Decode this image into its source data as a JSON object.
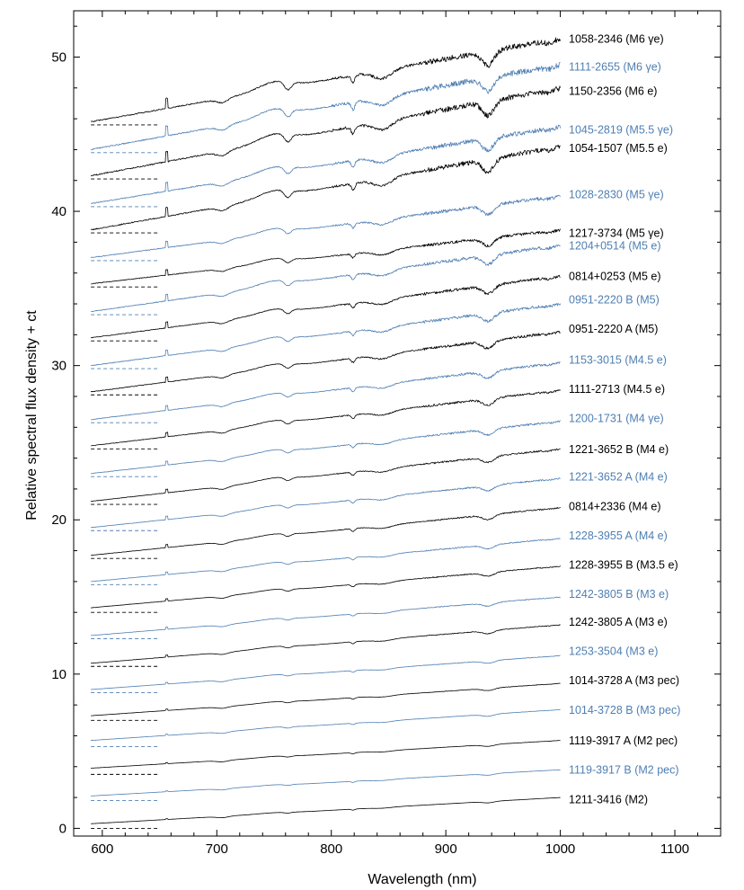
{
  "chart_data": {
    "type": "line",
    "title": "",
    "xlabel": "Wavelength (nm)",
    "ylabel": "Relative spectral flux density + ct",
    "xlim": [
      575,
      1140
    ],
    "ylim": [
      -0.5,
      53
    ],
    "x_ticks": [
      600,
      700,
      800,
      900,
      1000,
      1100
    ],
    "y_ticks": [
      0,
      10,
      20,
      30,
      40,
      50
    ],
    "x_range_spectra": [
      590,
      1000
    ],
    "dashed_reference_range": [
      590,
      650
    ],
    "colors": {
      "black": "#000000",
      "blue": "#4f7fb3"
    },
    "series": [
      {
        "name": "1211-3416 (M2)",
        "color": "black",
        "offset": 0.0,
        "start": 0.3,
        "end": 2.0,
        "label_y": 1.9
      },
      {
        "name": "1119-3917 B (M2  pec)",
        "color": "blue",
        "offset": 1.8,
        "start": 2.1,
        "end": 3.8,
        "label_y": 3.8
      },
      {
        "name": "1119-3917 A (M2  pec)",
        "color": "black",
        "offset": 3.5,
        "start": 3.9,
        "end": 5.7,
        "label_y": 5.7
      },
      {
        "name": "1014-3728 B (M3  pec)",
        "color": "blue",
        "offset": 5.3,
        "start": 5.7,
        "end": 7.7,
        "label_y": 7.7
      },
      {
        "name": "1014-3728 A (M3  pec)",
        "color": "black",
        "offset": 7.0,
        "start": 7.3,
        "end": 9.4,
        "label_y": 9.6
      },
      {
        "name": "1253-3504 (M3 e)",
        "color": "blue",
        "offset": 8.8,
        "start": 9.0,
        "end": 11.2,
        "label_y": 11.5
      },
      {
        "name": "1242-3805 A (M3 e)",
        "color": "black",
        "offset": 10.5,
        "start": 10.7,
        "end": 13.2,
        "label_y": 13.4
      },
      {
        "name": "1242-3805 B (M3 e)",
        "color": "blue",
        "offset": 12.3,
        "start": 12.5,
        "end": 15.0,
        "label_y": 15.2
      },
      {
        "name": "1228-3955 B (M3.5 e)",
        "color": "black",
        "offset": 14.0,
        "start": 14.3,
        "end": 17.0,
        "label_y": 17.1
      },
      {
        "name": "1228-3955 A (M4 e)",
        "color": "blue",
        "offset": 15.8,
        "start": 16.0,
        "end": 18.8,
        "label_y": 19.0
      },
      {
        "name": "0814+2336 (M4 e)",
        "color": "black",
        "offset": 17.5,
        "start": 17.7,
        "end": 20.8,
        "label_y": 20.9
      },
      {
        "name": "1221-3652 A (M4 e)",
        "color": "blue",
        "offset": 19.3,
        "start": 19.5,
        "end": 22.7,
        "label_y": 22.8
      },
      {
        "name": "1221-3652 B (M4 e)",
        "color": "black",
        "offset": 21.0,
        "start": 21.2,
        "end": 24.6,
        "label_y": 24.6
      },
      {
        "name": "1200-1731 (M4 γe)",
        "color": "blue",
        "offset": 22.8,
        "start": 23.0,
        "end": 26.4,
        "label_y": 26.6
      },
      {
        "name": "1111-2713 (M4.5 e)",
        "color": "black",
        "offset": 24.6,
        "start": 24.8,
        "end": 28.4,
        "label_y": 28.5
      },
      {
        "name": "1153-3015 (M4.5 e)",
        "color": "blue",
        "offset": 26.3,
        "start": 26.5,
        "end": 30.2,
        "label_y": 30.4
      },
      {
        "name": "0951-2220 A (M5)",
        "color": "black",
        "offset": 28.1,
        "start": 28.3,
        "end": 32.2,
        "label_y": 32.4
      },
      {
        "name": "0951-2220 B (M5)",
        "color": "blue",
        "offset": 29.8,
        "start": 30.0,
        "end": 34.0,
        "label_y": 34.3
      },
      {
        "name": "0814+0253 (M5 e)",
        "color": "black",
        "offset": 31.6,
        "start": 31.8,
        "end": 35.8,
        "label_y": 35.8
      },
      {
        "name": "1204+0514 (M5 e)",
        "color": "blue",
        "offset": 33.3,
        "start": 33.5,
        "end": 37.8,
        "label_y": 37.8
      },
      {
        "name": "1217-3734 (M5 γe)",
        "color": "black",
        "offset": 35.1,
        "start": 35.3,
        "end": 38.8,
        "label_y": 38.6
      },
      {
        "name": "1028-2830 (M5 γe)",
        "color": "blue",
        "offset": 36.8,
        "start": 37.0,
        "end": 41.0,
        "label_y": 41.1
      },
      {
        "name": "1054-1507 (M5.5 e)",
        "color": "black",
        "offset": 38.6,
        "start": 38.8,
        "end": 44.2,
        "label_y": 44.1
      },
      {
        "name": "1045-2819 (M5.5 γe)",
        "color": "blue",
        "offset": 40.3,
        "start": 40.5,
        "end": 45.5,
        "label_y": 45.3
      },
      {
        "name": "1150-2356 (M6 e)",
        "color": "black",
        "offset": 42.1,
        "start": 42.3,
        "end": 48.0,
        "label_y": 47.8
      },
      {
        "name": "1111-2655 (M6 γe)",
        "color": "blue",
        "offset": 43.8,
        "start": 44.0,
        "end": 49.5,
        "label_y": 49.4
      },
      {
        "name": "1058-2346 (M6 γe)",
        "color": "black",
        "offset": 45.6,
        "start": 45.8,
        "end": 51.2,
        "label_y": 51.2
      }
    ]
  }
}
